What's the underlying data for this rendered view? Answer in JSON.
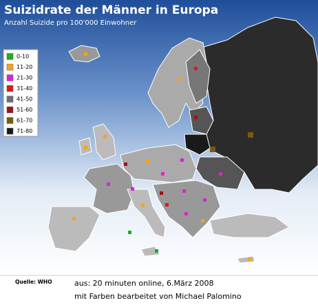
{
  "title": "Suizidrate der Männer in Europa",
  "subtitle": "Anzahl Suizide pro 100'000 Einwohner",
  "legend": [
    {
      "label": "0-10",
      "color": "#1faa2a"
    },
    {
      "label": "11-20",
      "color": "#f4a21f"
    },
    {
      "label": "21-30",
      "color": "#e020d8"
    },
    {
      "label": "31-40",
      "color": "#e01818"
    },
    {
      "label": "41-50",
      "color": "#6e6e6e"
    },
    {
      "label": "51-60",
      "color": "#a01212"
    },
    {
      "label": "61-70",
      "color": "#7a5a10"
    },
    {
      "label": "71-80",
      "color": "#1a1a1a"
    }
  ],
  "source": "Quelle: WHO",
  "credit": [
    "aus: 20 minuten online, 6.März 2008",
    "mit Farben bearbeitet von Michael Palomino"
  ]
}
